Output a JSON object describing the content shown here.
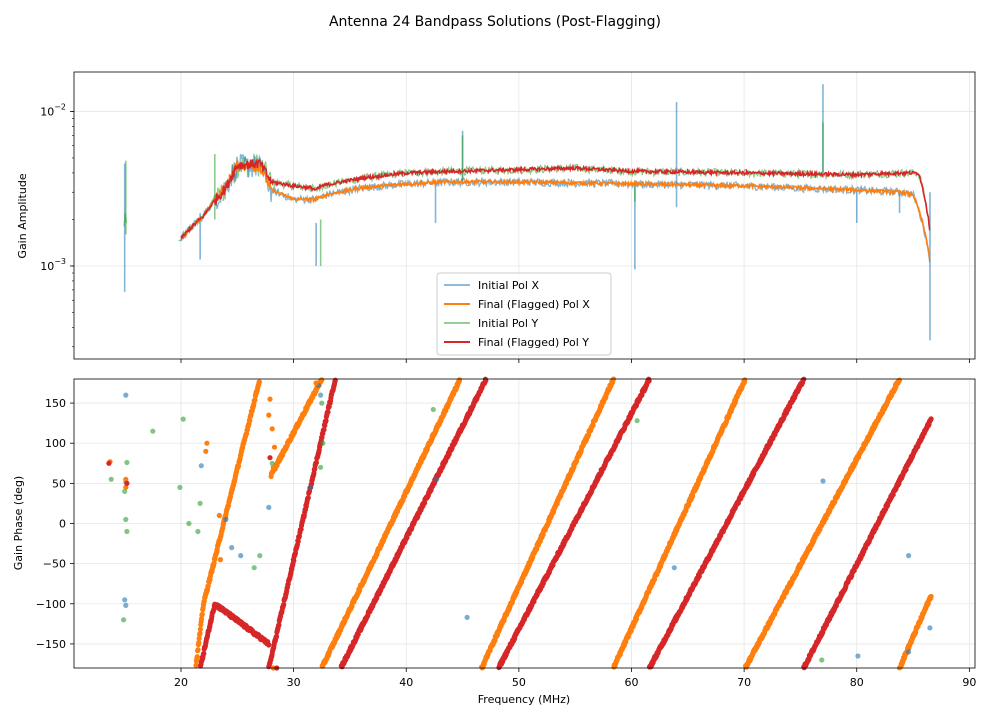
{
  "figure": {
    "title": "Antenna 24 Bandpass Solutions (Post-Flagging)"
  },
  "chart_data": [
    {
      "type": "line",
      "panel": "top",
      "ylabel": "Gain Amplitude",
      "yscale": "log",
      "ylim": [
        0.00025,
        0.018
      ],
      "xlim": [
        10.5,
        90.5
      ],
      "yticks": [
        {
          "value": 0.001,
          "base": "10",
          "exp": "−3"
        },
        {
          "value": 0.01,
          "base": "10",
          "exp": "−2"
        }
      ],
      "grid": true,
      "legend_position": "bottom-center",
      "series": [
        {
          "name": "Initial Pol X",
          "color": "#1f77b4"
        },
        {
          "name": "Final (Flagged) Pol X",
          "color": "#ff7f0e"
        },
        {
          "name": "Initial Pol Y",
          "color": "#2ca02c"
        },
        {
          "name": "Final (Flagged) Pol Y",
          "color": "#d62728"
        }
      ],
      "baseline_segments": {
        "final_x": [
          [
            20,
            0.0015
          ],
          [
            22,
            0.0021
          ],
          [
            24,
            0.0033
          ],
          [
            25,
            0.0045
          ],
          [
            27,
            0.0044
          ],
          [
            28,
            0.0031
          ],
          [
            30,
            0.0027
          ],
          [
            32,
            0.0027
          ],
          [
            33,
            0.0029
          ],
          [
            36,
            0.0032
          ],
          [
            40,
            0.0034
          ],
          [
            44,
            0.0035
          ],
          [
            50,
            0.0035
          ],
          [
            60,
            0.0034
          ],
          [
            70,
            0.0033
          ],
          [
            80,
            0.0031
          ],
          [
            84,
            0.003
          ],
          [
            85,
            0.0029
          ],
          [
            86.5,
            0.0011
          ]
        ],
        "final_y": [
          [
            20,
            0.0015
          ],
          [
            22,
            0.0021
          ],
          [
            24,
            0.0032
          ],
          [
            25,
            0.0045
          ],
          [
            27,
            0.0046
          ],
          [
            28,
            0.0035
          ],
          [
            30,
            0.0033
          ],
          [
            31.5,
            0.0032
          ],
          [
            32,
            0.0031
          ],
          [
            32.5,
            0.0033
          ],
          [
            36,
            0.0037
          ],
          [
            40,
            0.004
          ],
          [
            44,
            0.0041
          ],
          [
            50,
            0.0042
          ],
          [
            55,
            0.0043
          ],
          [
            60,
            0.0041
          ],
          [
            70,
            0.004
          ],
          [
            80,
            0.0039
          ],
          [
            84,
            0.004
          ],
          [
            85.5,
            0.004
          ],
          [
            86.5,
            0.0017
          ]
        ]
      },
      "spikes": [
        {
          "x": 15.0,
          "y_top": 0.0046,
          "y_bottom": 0.00068,
          "series": "initial_x"
        },
        {
          "x": 21.7,
          "y_top": 0.0022,
          "y_bottom": 0.0011,
          "series": "initial_x"
        },
        {
          "x": 32.0,
          "y_top": 0.0019,
          "y_bottom": 0.001,
          "series": "initial_x"
        },
        {
          "x": 42.6,
          "y_top": 0.0034,
          "y_bottom": 0.0019,
          "series": "initial_x"
        },
        {
          "x": 45.0,
          "y_top": 0.0075,
          "y_bottom": 0.0035,
          "series": "initial_x"
        },
        {
          "x": 60.3,
          "y_top": 0.0034,
          "y_bottom": 0.00095,
          "series": "initial_x"
        },
        {
          "x": 64.0,
          "y_top": 0.0115,
          "y_bottom": 0.0024,
          "series": "initial_x"
        },
        {
          "x": 77.0,
          "y_top": 0.015,
          "y_bottom": 0.004,
          "series": "initial_x"
        },
        {
          "x": 80.0,
          "y_top": 0.0031,
          "y_bottom": 0.0019,
          "series": "initial_x"
        },
        {
          "x": 83.8,
          "y_top": 0.0031,
          "y_bottom": 0.0022,
          "series": "initial_x"
        },
        {
          "x": 86.5,
          "y_top": 0.003,
          "y_bottom": 0.00033,
          "series": "initial_x"
        },
        {
          "x": 15.1,
          "y_top": 0.0048,
          "y_bottom": 0.0016,
          "series": "initial_y"
        },
        {
          "x": 23.0,
          "y_top": 0.0053,
          "y_bottom": 0.002,
          "series": "initial_y"
        },
        {
          "x": 32.4,
          "y_top": 0.002,
          "y_bottom": 0.001,
          "series": "initial_y"
        },
        {
          "x": 45.0,
          "y_top": 0.007,
          "y_bottom": 0.0036,
          "series": "initial_y"
        },
        {
          "x": 60.3,
          "y_top": 0.0035,
          "y_bottom": 0.0026,
          "series": "initial_y"
        },
        {
          "x": 77.0,
          "y_top": 0.0085,
          "y_bottom": 0.004,
          "series": "initial_y"
        }
      ]
    },
    {
      "type": "scatter",
      "panel": "bottom",
      "title": "",
      "xlabel": "Frequency (MHz)",
      "ylabel": "Gain Phase (deg)",
      "xlim": [
        10.5,
        90.5
      ],
      "ylim": [
        -180,
        180
      ],
      "xticks": [
        20,
        30,
        40,
        50,
        60,
        70,
        80,
        90
      ],
      "yticks": [
        -150,
        -100,
        -50,
        0,
        50,
        100,
        150
      ],
      "grid": true,
      "phase_wraps": [
        {
          "series": "final_x",
          "x_start": 21.3,
          "x_end": 22.0,
          "y_start": -180,
          "y_end": -100
        },
        {
          "series": "final_x",
          "x_start": 22.0,
          "x_end": 27.0,
          "y_start": -100,
          "y_end": 180
        },
        {
          "series": "final_x",
          "x_start": 28.0,
          "x_end": 32.5,
          "y_start": 60,
          "y_end": 180
        },
        {
          "series": "final_x",
          "x_start": 32.5,
          "x_end": 44.8,
          "y_start": -180,
          "y_end": 180
        },
        {
          "series": "final_x",
          "x_start": 46.7,
          "x_end": 58.4,
          "y_start": -180,
          "y_end": 180
        },
        {
          "series": "final_x",
          "x_start": 58.4,
          "x_end": 70.1,
          "y_start": -180,
          "y_end": 180
        },
        {
          "series": "final_x",
          "x_start": 70.1,
          "x_end": 83.8,
          "y_start": -180,
          "y_end": 180
        },
        {
          "series": "final_x",
          "x_start": 83.8,
          "x_end": 86.6,
          "y_start": -180,
          "y_end": -90
        },
        {
          "series": "final_y",
          "x_start": 21.7,
          "x_end": 23.0,
          "y_start": -180,
          "y_end": -100
        },
        {
          "series": "final_y",
          "x_start": 23.0,
          "x_end": 27.8,
          "y_start": -100,
          "y_end": -150
        },
        {
          "series": "final_y",
          "x_start": 27.8,
          "x_end": 33.7,
          "y_start": -180,
          "y_end": 180
        },
        {
          "series": "final_y",
          "x_start": 34.2,
          "x_end": 47.1,
          "y_start": -180,
          "y_end": 180
        },
        {
          "series": "final_y",
          "x_start": 48.2,
          "x_end": 61.6,
          "y_start": -180,
          "y_end": 180
        },
        {
          "series": "final_y",
          "x_start": 61.6,
          "x_end": 75.3,
          "y_start": -180,
          "y_end": 180
        },
        {
          "series": "final_y",
          "x_start": 75.3,
          "x_end": 86.6,
          "y_start": -180,
          "y_end": 130
        }
      ],
      "outliers": [
        {
          "series": "initial_x",
          "points": [
            [
              15.1,
              160
            ],
            [
              15.1,
              52
            ],
            [
              15.0,
              -95
            ],
            [
              15.1,
              -102
            ],
            [
              21.8,
              72
            ],
            [
              24.0,
              5
            ],
            [
              24.5,
              -30
            ],
            [
              25.3,
              -40
            ],
            [
              27.8,
              20
            ],
            [
              31.5,
              45
            ],
            [
              32.2,
              172
            ],
            [
              32.4,
              160
            ],
            [
              42.7,
              55
            ],
            [
              45.4,
              -117
            ],
            [
              63.8,
              -55
            ],
            [
              77.0,
              53
            ],
            [
              80.1,
              -165
            ],
            [
              84.6,
              -40
            ],
            [
              84.6,
              -160
            ],
            [
              86.5,
              -130
            ]
          ]
        },
        {
          "series": "initial_y",
          "points": [
            [
              13.8,
              55
            ],
            [
              15.2,
              76
            ],
            [
              15.0,
              40
            ],
            [
              15.1,
              5
            ],
            [
              15.2,
              -10
            ],
            [
              14.9,
              -120
            ],
            [
              17.5,
              115
            ],
            [
              19.9,
              45
            ],
            [
              20.2,
              130
            ],
            [
              20.7,
              0
            ],
            [
              21.7,
              25
            ],
            [
              21.5,
              -10
            ],
            [
              26.5,
              -55
            ],
            [
              27.0,
              -40
            ],
            [
              28.1,
              75
            ],
            [
              32.5,
              150
            ],
            [
              32.6,
              100
            ],
            [
              32.4,
              70
            ],
            [
              42.4,
              142
            ],
            [
              60.5,
              128
            ],
            [
              76.9,
              -170
            ]
          ]
        },
        {
          "series": "final_x",
          "points": [
            [
              13.7,
              77
            ],
            [
              15.1,
              55
            ],
            [
              15.1,
              45
            ],
            [
              22.3,
              100
            ],
            [
              22.2,
              90
            ],
            [
              23.4,
              10
            ],
            [
              23.2,
              -35
            ],
            [
              23.5,
              -45
            ],
            [
              27.9,
              155
            ],
            [
              27.8,
              135
            ],
            [
              28.1,
              118
            ],
            [
              28.3,
              95
            ],
            [
              28.2,
              70
            ],
            [
              28.2,
              -180
            ],
            [
              32.0,
              175
            ]
          ]
        },
        {
          "series": "final_y",
          "points": [
            [
              13.6,
              75
            ],
            [
              15.2,
              50
            ],
            [
              27.9,
              82
            ],
            [
              28.5,
              -180
            ]
          ]
        }
      ]
    }
  ]
}
